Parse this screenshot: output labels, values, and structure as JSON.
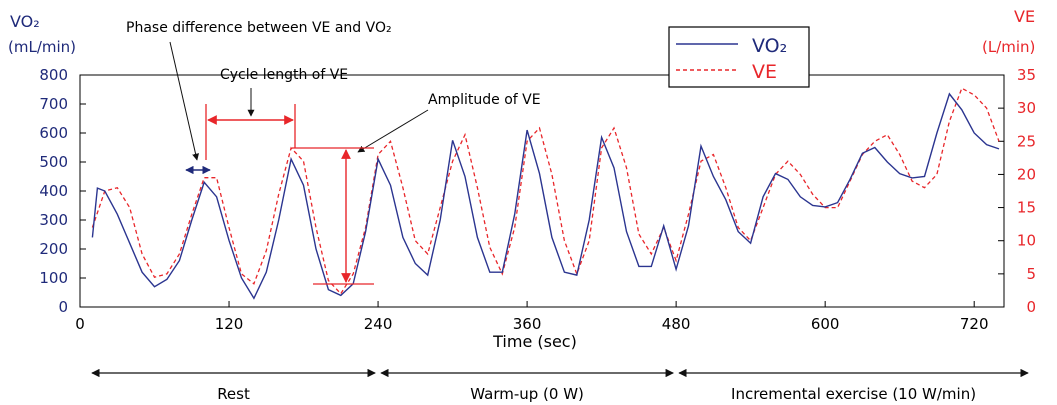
{
  "chart_data": {
    "type": "line",
    "title": "",
    "xlabel": "Time (sec)",
    "xlim": [
      0,
      744
    ],
    "xticks": [
      0,
      120,
      240,
      360,
      480,
      600,
      720
    ],
    "left_axis": {
      "label_line1": "VO₂",
      "label_line2": "(mL/min)",
      "ylim": [
        0,
        800
      ],
      "ticks": [
        0,
        100,
        200,
        300,
        400,
        500,
        600,
        700,
        800
      ],
      "color": "#1f2a7a"
    },
    "right_axis": {
      "label_line1": "VE",
      "label_line2": "(L/min)",
      "ylim": [
        0,
        35
      ],
      "ticks": [
        0,
        5,
        10,
        15,
        20,
        25,
        30,
        35
      ],
      "color": "#e8262a"
    },
    "legend": {
      "placement": "top-right"
    },
    "series": [
      {
        "name": "VO₂",
        "axis": "left",
        "color": "#2b3590",
        "style": "solid",
        "x": [
          10,
          14,
          20,
          30,
          40,
          50,
          60,
          70,
          80,
          90,
          100,
          110,
          120,
          130,
          140,
          150,
          160,
          170,
          180,
          190,
          200,
          210,
          220,
          230,
          240,
          250,
          260,
          270,
          280,
          290,
          300,
          310,
          320,
          330,
          340,
          350,
          360,
          370,
          380,
          390,
          400,
          410,
          420,
          430,
          440,
          450,
          460,
          470,
          480,
          490,
          500,
          510,
          520,
          530,
          540,
          550,
          560,
          570,
          580,
          590,
          600,
          610,
          620,
          630,
          640,
          650,
          660,
          670,
          680,
          690,
          700,
          710,
          720,
          730,
          740
        ],
        "y": [
          240,
          410,
          400,
          320,
          220,
          120,
          70,
          95,
          160,
          300,
          430,
          380,
          230,
          100,
          30,
          120,
          300,
          510,
          420,
          200,
          60,
          40,
          80,
          260,
          510,
          420,
          240,
          150,
          110,
          300,
          575,
          450,
          240,
          120,
          120,
          320,
          610,
          460,
          240,
          120,
          110,
          300,
          585,
          480,
          260,
          140,
          140,
          280,
          130,
          280,
          555,
          450,
          370,
          260,
          220,
          380,
          460,
          440,
          380,
          350,
          345,
          360,
          440,
          530,
          550,
          500,
          460,
          445,
          450,
          600,
          735,
          680,
          600,
          560,
          545
        ]
      },
      {
        "name": "VE",
        "axis": "right",
        "color": "#e8262a",
        "style": "dashed",
        "x": [
          10,
          20,
          30,
          40,
          50,
          60,
          70,
          80,
          90,
          100,
          110,
          120,
          130,
          140,
          150,
          160,
          170,
          180,
          190,
          200,
          210,
          220,
          230,
          240,
          250,
          260,
          270,
          280,
          290,
          300,
          310,
          320,
          330,
          340,
          350,
          360,
          370,
          380,
          390,
          400,
          410,
          420,
          430,
          440,
          450,
          460,
          470,
          480,
          490,
          500,
          510,
          520,
          530,
          540,
          550,
          560,
          570,
          580,
          590,
          600,
          610,
          620,
          630,
          640,
          650,
          660,
          670,
          680,
          690,
          700,
          710,
          720,
          730,
          740
        ],
        "y": [
          12,
          17.5,
          18,
          15,
          8,
          4.5,
          5,
          8,
          14,
          19.5,
          19.5,
          12,
          5,
          3.5,
          8.5,
          17,
          24,
          22,
          12,
          4,
          2,
          5,
          12,
          23,
          25,
          18,
          10,
          8,
          15,
          22,
          26,
          18,
          9,
          5,
          12,
          25,
          27,
          20,
          10,
          5,
          10,
          24,
          27,
          21,
          11,
          8,
          12,
          7,
          14,
          22,
          23,
          18,
          12,
          10,
          15,
          20,
          22,
          20,
          17,
          15,
          15,
          19,
          23,
          25,
          26,
          23,
          19,
          18,
          20,
          28,
          33,
          32,
          30,
          25
        ]
      }
    ],
    "annotations": {
      "phase_difference": "Phase difference between VE and VO₂",
      "cycle_length": "Cycle length of VE",
      "amplitude": "Amplitude of VE"
    },
    "phases": [
      {
        "label": "Rest",
        "start": 0,
        "end": 240
      },
      {
        "label": "Warm-up (0 W)",
        "start": 240,
        "end": 480
      },
      {
        "label": "Incremental exercise (10 W/min)",
        "start": 480,
        "end": 744
      }
    ]
  }
}
